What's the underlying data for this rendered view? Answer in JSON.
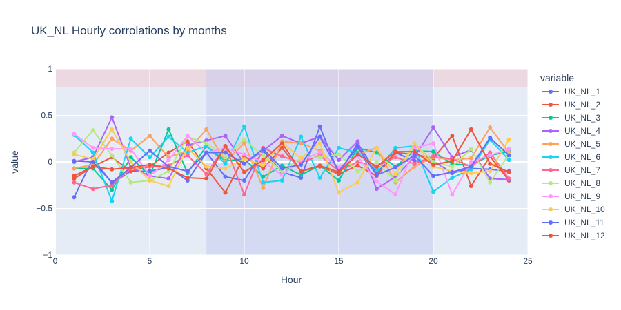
{
  "chart_data": {
    "type": "line",
    "title": "UK_NL Hourly corrolations by months",
    "xlabel": "Hour",
    "ylabel": "value",
    "xlim": [
      0,
      25
    ],
    "ylim": [
      -1,
      1
    ],
    "xticks": [
      0,
      5,
      10,
      15,
      20,
      25
    ],
    "yticks": [
      -1,
      -0.5,
      0,
      0.5,
      1
    ],
    "ytick_labels": [
      "−1",
      "−0.5",
      "0",
      "0.5",
      "1"
    ],
    "legend_title": "variable",
    "legend_position": "right",
    "grid": true,
    "background": "#e5ecf6",
    "shaded_regions": [
      {
        "axis": "y",
        "from": 0.8,
        "to": 1.0,
        "color": "#f0c8d0"
      },
      {
        "axis": "x",
        "from": 8,
        "to": 20,
        "color": "#c8ccf0"
      }
    ],
    "x": [
      1,
      2,
      3,
      4,
      5,
      6,
      7,
      8,
      9,
      10,
      11,
      12,
      13,
      14,
      15,
      16,
      17,
      18,
      19,
      20,
      21,
      22,
      23,
      24
    ],
    "series": [
      {
        "name": "UK_NL_1",
        "color": "#636efa",
        "values": [
          -0.38,
          0.04,
          -0.23,
          -0.1,
          -0.1,
          -0.06,
          -0.2,
          0.1,
          -0.16,
          -0.2,
          0.12,
          -0.11,
          -0.17,
          0.38,
          -0.13,
          0.2,
          -0.12,
          0.1,
          0.01,
          0.01,
          -0.12,
          -0.07,
          -0.08,
          -0.1
        ]
      },
      {
        "name": "UK_NL_2",
        "color": "#EF553B",
        "values": [
          -0.15,
          -0.05,
          0.05,
          -0.1,
          -0.05,
          0.1,
          0.22,
          -0.07,
          -0.33,
          0.06,
          -0.07,
          0.15,
          -0.1,
          -0.05,
          -0.13,
          -0.04,
          -0.15,
          0.1,
          0.08,
          0.04,
          0.28,
          -0.26,
          0.06,
          -0.2
        ]
      },
      {
        "name": "UK_NL_3",
        "color": "#00cc96",
        "values": [
          -0.07,
          -0.07,
          -0.3,
          0.05,
          -0.15,
          0.35,
          -0.12,
          0.17,
          0.01,
          0.03,
          -0.16,
          -0.04,
          -0.14,
          -0.04,
          -0.2,
          0.15,
          0.1,
          -0.05,
          0.12,
          0.11,
          -0.02,
          -0.04,
          0.07,
          0.11
        ]
      },
      {
        "name": "UK_NL_4",
        "color": "#ab63fa",
        "values": [
          0.0,
          0.05,
          0.48,
          -0.06,
          -0.15,
          -0.18,
          0.18,
          0.23,
          0.28,
          -0.02,
          0.12,
          0.28,
          0.2,
          0.27,
          0.02,
          0.22,
          -0.29,
          -0.16,
          0.05,
          0.37,
          0.05,
          0.13,
          -0.18,
          -0.19
        ]
      },
      {
        "name": "UK_NL_5",
        "color": "#FFA15A",
        "values": [
          -0.07,
          -0.03,
          0.25,
          0.12,
          0.28,
          0.05,
          0.12,
          0.35,
          0.0,
          0.2,
          -0.28,
          0.22,
          0.2,
          0.12,
          -0.08,
          0.08,
          0.15,
          -0.22,
          -0.05,
          0.05,
          0.02,
          0.04,
          0.37,
          0.1
        ]
      },
      {
        "name": "UK_NL_6",
        "color": "#19d3f3",
        "values": [
          0.29,
          0.1,
          -0.42,
          0.25,
          0.05,
          0.27,
          0.1,
          0.17,
          -0.02,
          0.38,
          -0.22,
          -0.2,
          0.27,
          -0.17,
          0.15,
          0.1,
          -0.09,
          0.15,
          0.17,
          -0.32,
          -0.17,
          -0.08,
          0.24,
          0.02
        ]
      },
      {
        "name": "UK_NL_7",
        "color": "#FF6692",
        "values": [
          -0.22,
          -0.29,
          -0.25,
          -0.07,
          -0.05,
          -0.04,
          0.07,
          -0.13,
          0.17,
          -0.35,
          0.15,
          0.06,
          -0.01,
          0.07,
          -0.1,
          0.0,
          -0.05,
          0.05,
          -0.02,
          0.06,
          0.03,
          -0.05,
          0.1,
          -0.18
        ]
      },
      {
        "name": "UK_NL_8",
        "color": "#B6E880",
        "values": [
          0.1,
          0.34,
          0.07,
          -0.22,
          -0.2,
          -0.1,
          0.27,
          0.2,
          0.05,
          0.24,
          0.07,
          -0.1,
          0.04,
          0.05,
          0.08,
          -0.1,
          0.0,
          -0.2,
          0.2,
          0.0,
          -0.05,
          0.14,
          -0.22,
          0.08
        ]
      },
      {
        "name": "UK_NL_9",
        "color": "#FF97FF",
        "values": [
          0.3,
          0.15,
          0.14,
          0.14,
          -0.15,
          0.02,
          0.28,
          0.1,
          0.15,
          0.08,
          0.0,
          -0.14,
          0.02,
          0.1,
          -0.06,
          0.06,
          -0.21,
          -0.35,
          0.15,
          0.2,
          -0.35,
          0.0,
          0.07,
          0.14
        ]
      },
      {
        "name": "UK_NL_10",
        "color": "#FECB52",
        "values": [
          0.08,
          0.03,
          0.35,
          0.0,
          -0.2,
          -0.26,
          0.15,
          -0.05,
          -0.07,
          0.03,
          -0.03,
          0.21,
          0.04,
          0.2,
          -0.33,
          -0.22,
          0.15,
          -0.13,
          0.2,
          -0.05,
          -0.1,
          -0.12,
          -0.1,
          0.24
        ]
      },
      {
        "name": "UK_NL_11",
        "color": "#636efa",
        "values": [
          0.01,
          0.0,
          -0.22,
          -0.06,
          0.12,
          -0.05,
          -0.1,
          0.1,
          0.1,
          -0.02,
          0.14,
          -0.07,
          -0.03,
          0.27,
          -0.1,
          0.16,
          -0.14,
          -0.06,
          0.07,
          -0.15,
          -0.11,
          -0.05,
          0.26,
          0.07
        ]
      },
      {
        "name": "UK_NL_12",
        "color": "#EF553B",
        "values": [
          -0.18,
          -0.05,
          -0.08,
          -0.06,
          -0.03,
          -0.07,
          -0.17,
          -0.18,
          0.17,
          -0.11,
          0.02,
          0.2,
          -0.1,
          -0.04,
          -0.11,
          0.08,
          -0.05,
          0.11,
          0.11,
          -0.03,
          0.01,
          0.35,
          -0.02,
          -0.11
        ]
      }
    ]
  }
}
